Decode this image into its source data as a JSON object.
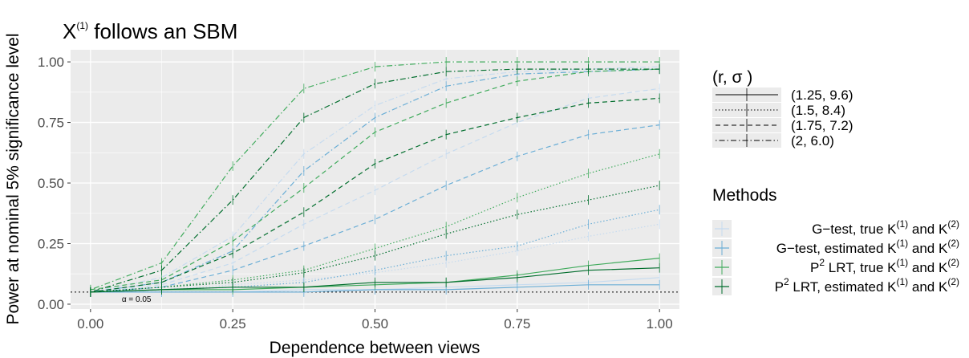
{
  "chart_data": {
    "type": "line",
    "title": "X",
    "title_sup": "(1)",
    "title_rest": " follows an SBM",
    "xlabel": "Dependence between views",
    "ylabel": "Power at nominal 5% significance level",
    "xlim": [
      -0.035,
      1.035
    ],
    "ylim": [
      -0.02,
      1.05
    ],
    "x_ticks": [
      "0.00",
      "0.25",
      "0.50",
      "0.75",
      "1.00"
    ],
    "y_ticks": [
      "0.00",
      "0.25",
      "0.50",
      "0.75",
      "1.00"
    ],
    "alpha_line": 0.05,
    "alpha_label": "α = 0.05",
    "grid": true,
    "x": [
      0,
      0.125,
      0.25,
      0.375,
      0.5,
      0.625,
      0.75,
      0.875,
      1.0
    ],
    "linetype_legend": {
      "title": "(r,  σ )",
      "entries": [
        "(1.25, 9.6)",
        "(1.5, 8.4)",
        "(1.75, 7.2)",
        "(2, 6.0)"
      ],
      "dash": [
        "solid",
        "dotted",
        "dashed",
        "dotdash"
      ]
    },
    "color_legend": {
      "title": "Methods",
      "entries": [
        {
          "prefix": "G−test, true  K",
          "sup1": "(1)",
          "mid": " and K",
          "sup2": "(2)",
          "color": "#c6dbef"
        },
        {
          "prefix": "G−test, estimated  K",
          "sup1": "(1)",
          "mid": " and K",
          "sup2": "(2)",
          "color": "#6baed6"
        },
        {
          "prefix": "P",
          "p2": "2",
          "prefix2": " LRT, true  K",
          "sup1": "(1)",
          "mid": " and K",
          "sup2": "(2)",
          "color": "#41ab5d"
        },
        {
          "prefix": "P",
          "p2": "2",
          "prefix2": " LRT, estimated  K",
          "sup1": "(1)",
          "mid": " and K",
          "sup2": "(2)",
          "color": "#006d2c"
        }
      ]
    },
    "series": [
      {
        "method": 0,
        "dash": "solid",
        "values": [
          0.05,
          0.05,
          0.05,
          0.06,
          0.06,
          0.07,
          0.08,
          0.09,
          0.11
        ]
      },
      {
        "method": 0,
        "dash": "dotted",
        "values": [
          0.05,
          0.06,
          0.08,
          0.1,
          0.13,
          0.17,
          0.22,
          0.28,
          0.33
        ]
      },
      {
        "method": 0,
        "dash": "dashed",
        "values": [
          0.05,
          0.08,
          0.17,
          0.33,
          0.47,
          0.62,
          0.75,
          0.85,
          0.89
        ]
      },
      {
        "method": 0,
        "dash": "dotdash",
        "values": [
          0.05,
          0.11,
          0.28,
          0.62,
          0.82,
          0.93,
          0.96,
          0.97,
          0.98
        ]
      },
      {
        "method": 1,
        "dash": "solid",
        "values": [
          0.05,
          0.05,
          0.05,
          0.05,
          0.06,
          0.06,
          0.07,
          0.08,
          0.08
        ]
      },
      {
        "method": 1,
        "dash": "dotted",
        "values": [
          0.05,
          0.06,
          0.07,
          0.09,
          0.14,
          0.2,
          0.24,
          0.33,
          0.39
        ]
      },
      {
        "method": 1,
        "dash": "dashed",
        "values": [
          0.05,
          0.07,
          0.14,
          0.24,
          0.35,
          0.49,
          0.61,
          0.7,
          0.74
        ]
      },
      {
        "method": 1,
        "dash": "dotdash",
        "values": [
          0.05,
          0.09,
          0.22,
          0.55,
          0.77,
          0.9,
          0.95,
          0.96,
          0.97
        ]
      },
      {
        "method": 2,
        "dash": "solid",
        "values": [
          0.05,
          0.06,
          0.06,
          0.07,
          0.08,
          0.09,
          0.12,
          0.16,
          0.19
        ]
      },
      {
        "method": 2,
        "dash": "dotted",
        "values": [
          0.05,
          0.07,
          0.1,
          0.14,
          0.23,
          0.32,
          0.44,
          0.54,
          0.62
        ]
      },
      {
        "method": 2,
        "dash": "dashed",
        "values": [
          0.06,
          0.1,
          0.26,
          0.48,
          0.71,
          0.83,
          0.92,
          0.96,
          0.97
        ]
      },
      {
        "method": 2,
        "dash": "dotdash",
        "values": [
          0.06,
          0.17,
          0.57,
          0.89,
          0.98,
          1.0,
          1.0,
          1.0,
          1.0
        ]
      },
      {
        "method": 3,
        "dash": "solid",
        "values": [
          0.05,
          0.06,
          0.07,
          0.07,
          0.09,
          0.09,
          0.11,
          0.14,
          0.15
        ]
      },
      {
        "method": 3,
        "dash": "dotted",
        "values": [
          0.05,
          0.07,
          0.09,
          0.13,
          0.2,
          0.29,
          0.37,
          0.43,
          0.49
        ]
      },
      {
        "method": 3,
        "dash": "dashed",
        "values": [
          0.05,
          0.09,
          0.21,
          0.38,
          0.58,
          0.7,
          0.77,
          0.83,
          0.85
        ]
      },
      {
        "method": 3,
        "dash": "dotdash",
        "values": [
          0.05,
          0.14,
          0.43,
          0.77,
          0.91,
          0.96,
          0.97,
          0.97,
          0.97
        ]
      }
    ]
  }
}
